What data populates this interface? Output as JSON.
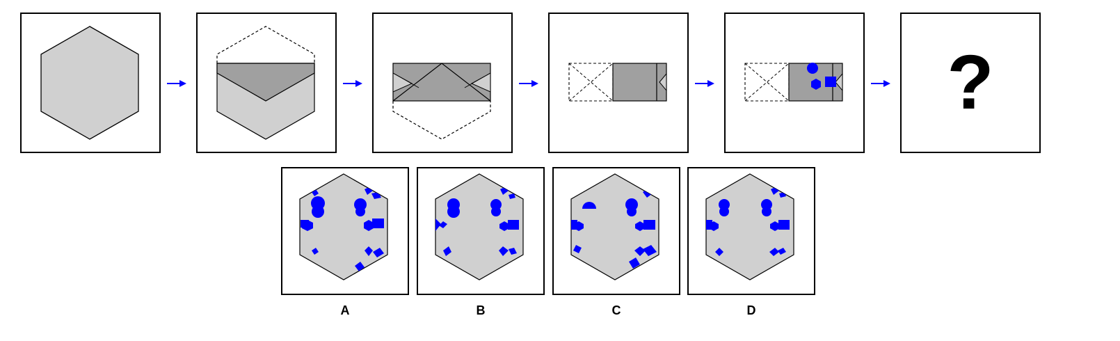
{
  "question_mark": "?",
  "options": [
    {
      "label": "A"
    },
    {
      "label": "B"
    },
    {
      "label": "C"
    },
    {
      "label": "D"
    }
  ],
  "colors": {
    "paper": "#d0d0d0",
    "fold": "#a0a0a0",
    "hole": "#0000ff",
    "arrow": "#0000ff",
    "outline": "#000000"
  }
}
